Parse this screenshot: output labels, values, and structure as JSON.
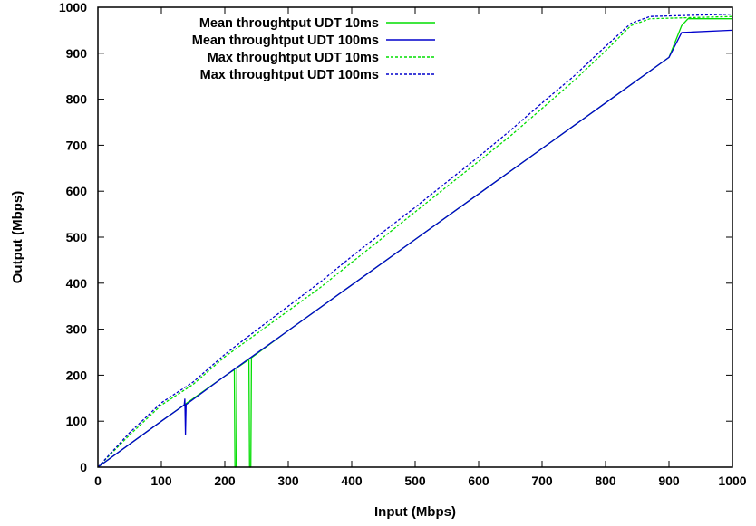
{
  "chart_data": {
    "type": "line",
    "title": "",
    "xlabel": "Input (Mbps)",
    "ylabel": "Output (Mbps)",
    "xlim": [
      0,
      1000
    ],
    "ylim": [
      0,
      1000
    ],
    "xticks": [
      "0",
      "100",
      "200",
      "300",
      "400",
      "500",
      "600",
      "700",
      "800",
      "900",
      "1000"
    ],
    "yticks": [
      "0",
      "100",
      "200",
      "300",
      "400",
      "500",
      "600",
      "700",
      "800",
      "900",
      "1000"
    ],
    "grid": false,
    "legend_position": "top-left",
    "series": [
      {
        "name": "Mean throughtput UDT 10ms",
        "color": "#00dd00",
        "style": "solid",
        "points": [
          [
            0,
            0
          ],
          [
            100,
            100
          ],
          [
            200,
            198
          ],
          [
            215,
            212
          ],
          [
            216,
            0
          ],
          [
            218,
            0
          ],
          [
            219,
            216
          ],
          [
            238,
            234
          ],
          [
            239,
            0
          ],
          [
            241,
            0
          ],
          [
            242,
            238
          ],
          [
            300,
            297
          ],
          [
            400,
            396
          ],
          [
            500,
            495
          ],
          [
            600,
            594
          ],
          [
            700,
            693
          ],
          [
            800,
            792
          ],
          [
            900,
            891
          ],
          [
            920,
            960
          ],
          [
            930,
            975
          ],
          [
            1000,
            975
          ]
        ]
      },
      {
        "name": "Mean throughtput UDT 100ms",
        "color": "#0000cc",
        "style": "solid",
        "points": [
          [
            0,
            0
          ],
          [
            100,
            100
          ],
          [
            136,
            135
          ],
          [
            137,
            148
          ],
          [
            138,
            70
          ],
          [
            139,
            136
          ],
          [
            200,
            198
          ],
          [
            300,
            297
          ],
          [
            400,
            396
          ],
          [
            500,
            495
          ],
          [
            600,
            594
          ],
          [
            700,
            693
          ],
          [
            800,
            792
          ],
          [
            900,
            891
          ],
          [
            920,
            945
          ],
          [
            1000,
            950
          ]
        ]
      },
      {
        "name": "Max throughtput UDT 10ms",
        "color": "#00dd00",
        "style": "dotted",
        "points": [
          [
            0,
            0
          ],
          [
            50,
            70
          ],
          [
            100,
            135
          ],
          [
            150,
            180
          ],
          [
            200,
            240
          ],
          [
            250,
            290
          ],
          [
            300,
            340
          ],
          [
            350,
            390
          ],
          [
            400,
            445
          ],
          [
            450,
            500
          ],
          [
            500,
            555
          ],
          [
            550,
            610
          ],
          [
            600,
            665
          ],
          [
            650,
            720
          ],
          [
            700,
            780
          ],
          [
            750,
            840
          ],
          [
            800,
            905
          ],
          [
            840,
            960
          ],
          [
            870,
            975
          ],
          [
            1000,
            980
          ]
        ]
      },
      {
        "name": "Max throughtput UDT 100ms",
        "color": "#0000cc",
        "style": "dotted",
        "points": [
          [
            0,
            0
          ],
          [
            50,
            75
          ],
          [
            100,
            140
          ],
          [
            150,
            185
          ],
          [
            200,
            245
          ],
          [
            250,
            298
          ],
          [
            300,
            350
          ],
          [
            350,
            402
          ],
          [
            400,
            458
          ],
          [
            450,
            512
          ],
          [
            500,
            565
          ],
          [
            550,
            620
          ],
          [
            600,
            675
          ],
          [
            650,
            732
          ],
          [
            700,
            792
          ],
          [
            750,
            850
          ],
          [
            800,
            915
          ],
          [
            840,
            965
          ],
          [
            870,
            980
          ],
          [
            1000,
            985
          ]
        ]
      }
    ]
  }
}
